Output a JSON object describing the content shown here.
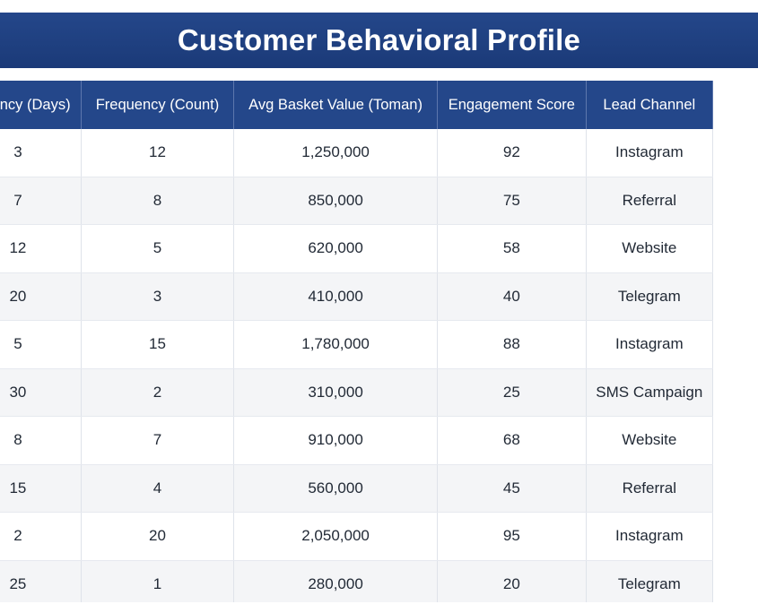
{
  "title": "Customer Behavioral Profile",
  "chart_data": {
    "type": "table",
    "columns": [
      "Recency (Days)",
      "Frequency (Count)",
      "Avg Basket Value (Toman)",
      "Engagement Score",
      "Lead Channel"
    ],
    "rows": [
      [
        "3",
        "12",
        "1,250,000",
        "92",
        "Instagram"
      ],
      [
        "7",
        "8",
        "850,000",
        "75",
        "Referral"
      ],
      [
        "12",
        "5",
        "620,000",
        "58",
        "Website"
      ],
      [
        "20",
        "3",
        "410,000",
        "40",
        "Telegram"
      ],
      [
        "5",
        "15",
        "1,780,000",
        "88",
        "Instagram"
      ],
      [
        "30",
        "2",
        "310,000",
        "25",
        "SMS Campaign"
      ],
      [
        "8",
        "7",
        "910,000",
        "68",
        "Website"
      ],
      [
        "15",
        "4",
        "560,000",
        "45",
        "Referral"
      ],
      [
        "2",
        "20",
        "2,050,000",
        "95",
        "Instagram"
      ],
      [
        "25",
        "1",
        "280,000",
        "20",
        "Telegram"
      ]
    ]
  },
  "colors": {
    "header_bg": "#24478a",
    "header_text": "#ffffff",
    "row_alt_bg": "#f4f5f7"
  }
}
